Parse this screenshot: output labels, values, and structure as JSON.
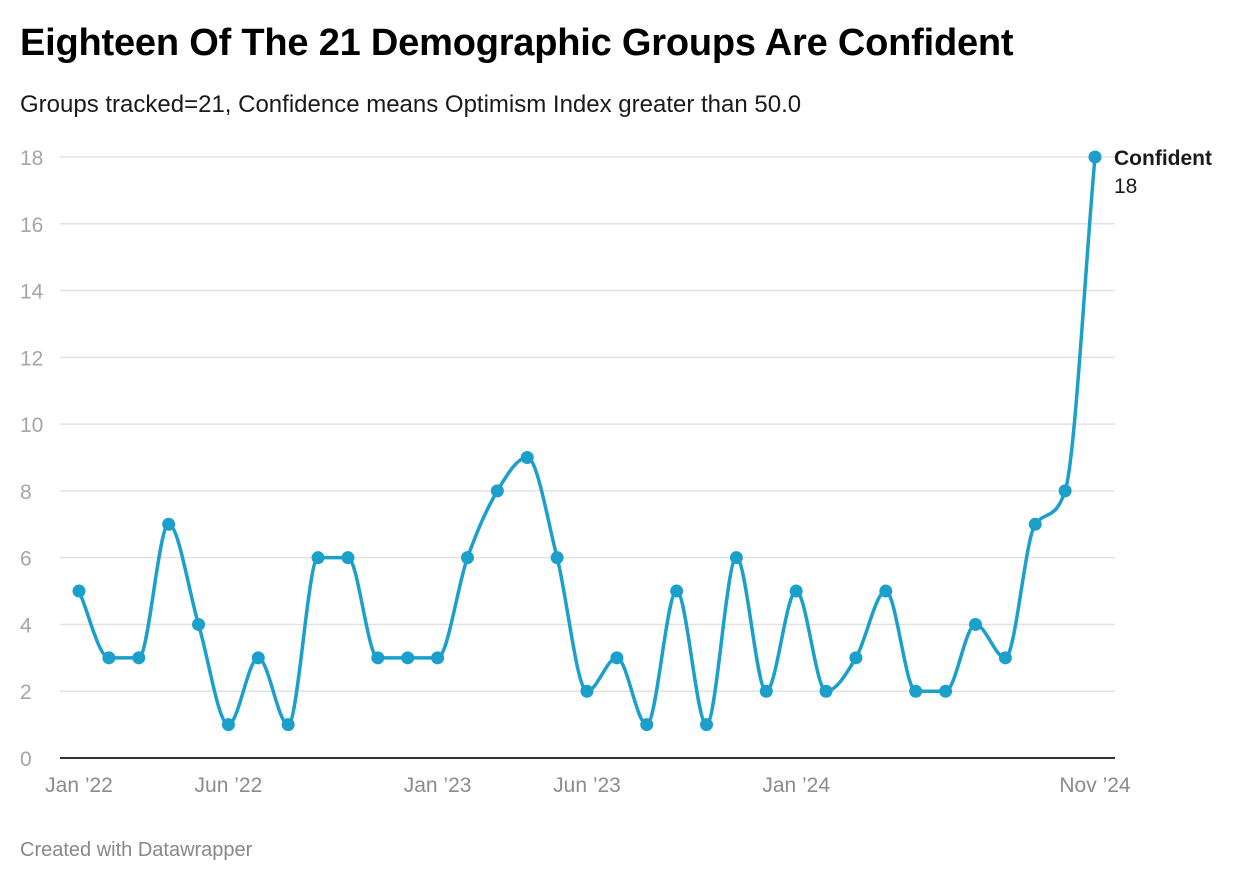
{
  "header": {
    "title": "Eighteen Of The 21 Demographic Groups Are Confident",
    "subtitle": "Groups tracked=21, Confidence means Optimism Index greater than 50.0"
  },
  "footer": {
    "credit": "Created with Datawrapper"
  },
  "colors": {
    "line": "#1b9fcb",
    "grid": "#e2e2e2",
    "axis": "#333333"
  },
  "chart_data": {
    "type": "line",
    "title": "Eighteen Of The 21 Demographic Groups Are Confident",
    "subtitle": "Groups tracked=21, Confidence means Optimism Index greater than 50.0",
    "xlabel": "",
    "ylabel": "",
    "ylim": [
      0,
      18
    ],
    "yticks": [
      0,
      2,
      4,
      6,
      8,
      10,
      12,
      14,
      16,
      18
    ],
    "grid": true,
    "xtick_labels": [
      {
        "label": "Jan ’22",
        "index": 0
      },
      {
        "label": "Jun ’22",
        "index": 5
      },
      {
        "label": "Jan ’23",
        "index": 12
      },
      {
        "label": "Jun ’23",
        "index": 17
      },
      {
        "label": "Jan ’24",
        "index": 24
      },
      {
        "label": "Nov ’24",
        "index": 34
      }
    ],
    "series": [
      {
        "name": "Confident",
        "end_label": "18",
        "x": [
          "2022-01",
          "2022-02",
          "2022-03",
          "2022-04",
          "2022-05",
          "2022-06",
          "2022-07",
          "2022-08",
          "2022-09",
          "2022-10",
          "2022-11",
          "2022-12",
          "2023-01",
          "2023-02",
          "2023-03",
          "2023-04",
          "2023-05",
          "2023-06",
          "2023-07",
          "2023-08",
          "2023-09",
          "2023-10",
          "2023-11",
          "2023-12",
          "2024-01",
          "2024-02",
          "2024-03",
          "2024-04",
          "2024-05",
          "2024-06",
          "2024-07",
          "2024-08",
          "2024-09",
          "2024-10",
          "2024-11"
        ],
        "values": [
          5,
          3,
          3,
          7,
          4,
          1,
          3,
          1,
          6,
          6,
          3,
          3,
          3,
          6,
          8,
          9,
          6,
          2,
          3,
          1,
          5,
          1,
          6,
          2,
          5,
          2,
          3,
          5,
          2,
          2,
          4,
          3,
          7,
          8,
          18
        ]
      }
    ]
  }
}
